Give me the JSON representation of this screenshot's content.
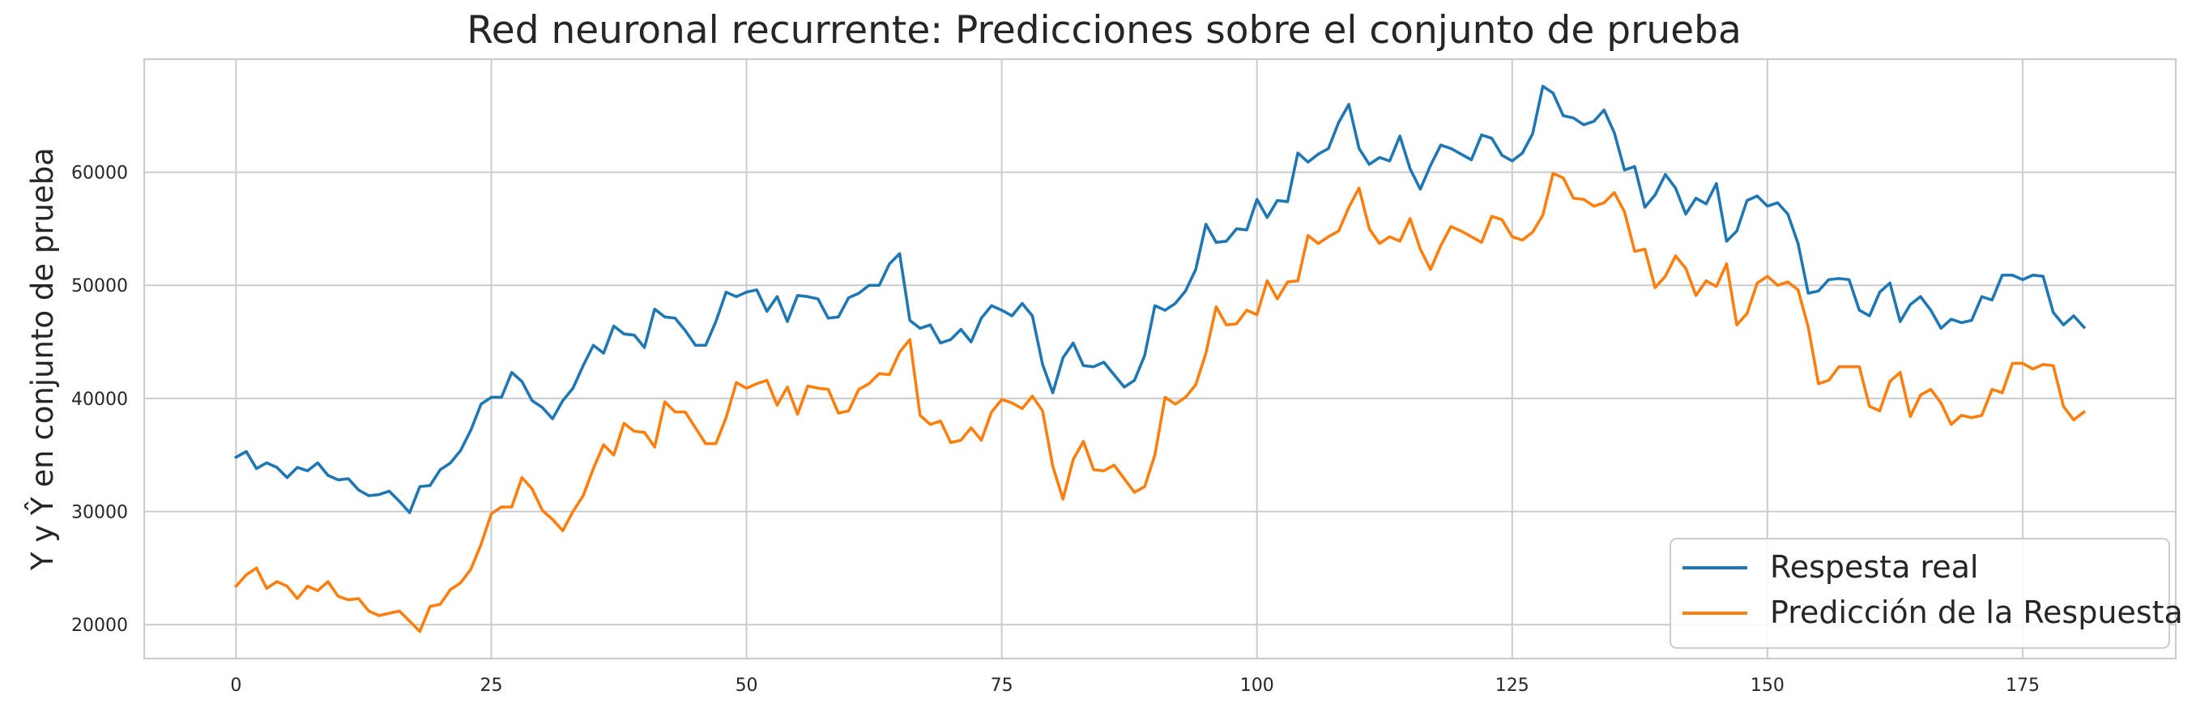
{
  "chart_data": {
    "type": "line",
    "title": "Red neuronal recurrente: Predicciones sobre el conjunto de prueba",
    "xlabel": "",
    "ylabel": "Y y Ŷ en conjunto de prueba",
    "xlim": [
      -9,
      190
    ],
    "ylim": [
      17000,
      70000
    ],
    "x_ticks": [
      0,
      25,
      50,
      75,
      100,
      125,
      150,
      175
    ],
    "x_tick_labels": [
      "0",
      "25",
      "50",
      "75",
      "100",
      "125",
      "150",
      "175"
    ],
    "y_ticks": [
      20000,
      30000,
      40000,
      50000,
      60000
    ],
    "y_tick_labels": [
      "20000",
      "30000",
      "40000",
      "50000",
      "60000"
    ],
    "grid": true,
    "legend_position": "lower-right",
    "x": [
      0,
      1,
      2,
      3,
      4,
      5,
      6,
      7,
      8,
      9,
      10,
      11,
      12,
      13,
      14,
      15,
      16,
      17,
      18,
      19,
      20,
      21,
      22,
      23,
      24,
      25,
      26,
      27,
      28,
      29,
      30,
      31,
      32,
      33,
      34,
      35,
      36,
      37,
      38,
      39,
      40,
      41,
      42,
      43,
      44,
      45,
      46,
      47,
      48,
      49,
      50,
      51,
      52,
      53,
      54,
      55,
      56,
      57,
      58,
      59,
      60,
      61,
      62,
      63,
      64,
      65,
      66,
      67,
      68,
      69,
      70,
      71,
      72,
      73,
      74,
      75,
      76,
      77,
      78,
      79,
      80,
      81,
      82,
      83,
      84,
      85,
      86,
      87,
      88,
      89,
      90,
      91,
      92,
      93,
      94,
      95,
      96,
      97,
      98,
      99,
      100,
      101,
      102,
      103,
      104,
      105,
      106,
      107,
      108,
      109,
      110,
      111,
      112,
      113,
      114,
      115,
      116,
      117,
      118,
      119,
      120,
      121,
      122,
      123,
      124,
      125,
      126,
      127,
      128,
      129,
      130,
      131,
      132,
      133,
      134,
      135,
      136,
      137,
      138,
      139,
      140,
      141,
      142,
      143,
      144,
      145,
      146,
      147,
      148,
      149,
      150,
      151,
      152,
      153,
      154,
      155,
      156,
      157,
      158,
      159,
      160,
      161,
      162,
      163,
      164,
      165,
      166,
      167,
      168,
      169,
      170,
      171,
      172,
      173,
      174,
      175,
      176,
      177,
      178,
      179,
      180,
      181
    ],
    "series": [
      {
        "name": "Respesta real",
        "color": "#1f77b4",
        "values": [
          34800,
          35300,
          33800,
          34300,
          33900,
          33000,
          33900,
          33600,
          34300,
          33200,
          32800,
          32900,
          31900,
          31400,
          31500,
          31800,
          30900,
          29900,
          32200,
          32300,
          33700,
          34300,
          35400,
          37200,
          39500,
          40100,
          40100,
          42300,
          41500,
          39800,
          39200,
          38200,
          39800,
          40900,
          42900,
          44700,
          44000,
          46400,
          45700,
          45600,
          44500,
          47900,
          47200,
          47100,
          46000,
          44700,
          44700,
          46800,
          49400,
          49000,
          49400,
          49600,
          47700,
          49000,
          46800,
          49100,
          49000,
          48800,
          47100,
          47200,
          48900,
          49300,
          50000,
          50000,
          51900,
          52800,
          46900,
          46200,
          46500,
          44900,
          45200,
          46100,
          45000,
          47100,
          48200,
          47800,
          47300,
          48400,
          47300,
          43000,
          40500,
          43600,
          44900,
          42900,
          42800,
          43200,
          42100,
          41000,
          41600,
          43800,
          48200,
          47800,
          48400,
          49500,
          51400,
          55400,
          53800,
          53900,
          55000,
          54900,
          57600,
          56000,
          57500,
          57400,
          61700,
          60900,
          61600,
          62100,
          64400,
          66000,
          62100,
          60700,
          61300,
          61000,
          63200,
          60300,
          58500,
          60600,
          62400,
          62100,
          61600,
          61100,
          63300,
          63000,
          61500,
          61000,
          61700,
          63400,
          67600,
          67000,
          65000,
          64800,
          64200,
          64500,
          65500,
          63500,
          60200,
          60500,
          56900,
          58000,
          59800,
          58600,
          56300,
          57700,
          57200,
          59000,
          53900,
          54800,
          57500,
          57900,
          57000,
          57300,
          56300,
          53700,
          49300,
          49500,
          50500,
          50600,
          50500,
          47800,
          47300,
          49400,
          50200,
          46800,
          48300,
          49000,
          47800,
          46200,
          47000,
          46700,
          46900,
          49000,
          48700,
          50900,
          50900,
          50500,
          50900,
          50800,
          47600,
          46500,
          47300,
          46300
        ]
      },
      {
        "name": "Predicción de la Respuesta",
        "color": "#ff7f0e",
        "values": [
          23400,
          24400,
          25000,
          23200,
          23800,
          23400,
          22300,
          23400,
          23000,
          23800,
          22500,
          22200,
          22300,
          21200,
          20800,
          21000,
          21200,
          20300,
          19400,
          21600,
          21800,
          23100,
          23700,
          24900,
          27100,
          29800,
          30400,
          30400,
          33000,
          32000,
          30100,
          29300,
          28300,
          30000,
          31400,
          33800,
          35900,
          35000,
          37800,
          37100,
          37000,
          35700,
          39700,
          38800,
          38800,
          37400,
          36000,
          36000,
          38300,
          41400,
          40900,
          41300,
          41600,
          39400,
          41000,
          38600,
          41100,
          40900,
          40800,
          38700,
          38900,
          40800,
          41300,
          42200,
          42100,
          44100,
          45200,
          38500,
          37700,
          38000,
          36100,
          36300,
          37400,
          36300,
          38800,
          39900,
          39600,
          39100,
          40200,
          38900,
          34000,
          31100,
          34600,
          36200,
          33700,
          33600,
          34100,
          32900,
          31700,
          32200,
          35000,
          40100,
          39500,
          40100,
          41200,
          44000,
          48100,
          46500,
          46600,
          47800,
          47400,
          50400,
          48800,
          50300,
          50400,
          54400,
          53700,
          54300,
          54800,
          56900,
          58600,
          55000,
          53700,
          54300,
          53900,
          55900,
          53200,
          51400,
          53500,
          55200,
          54800,
          54300,
          53800,
          56100,
          55800,
          54300,
          54000,
          54700,
          56200,
          59900,
          59500,
          57700,
          57600,
          57000,
          57300,
          58200,
          56500,
          53000,
          53200,
          49800,
          50800,
          52600,
          51500,
          49100,
          50400,
          49900,
          51900,
          46500,
          47500,
          50200,
          50800,
          50000,
          50300,
          49600,
          46300,
          41300,
          41600,
          42800,
          42800,
          42800,
          39300,
          38900,
          41500,
          42300,
          38400,
          40300,
          40800,
          39600,
          37700,
          38500,
          38300,
          38500,
          40800,
          40500,
          43100,
          43100,
          42600,
          43000,
          42900,
          39300,
          38100,
          38800
        ]
      }
    ]
  }
}
